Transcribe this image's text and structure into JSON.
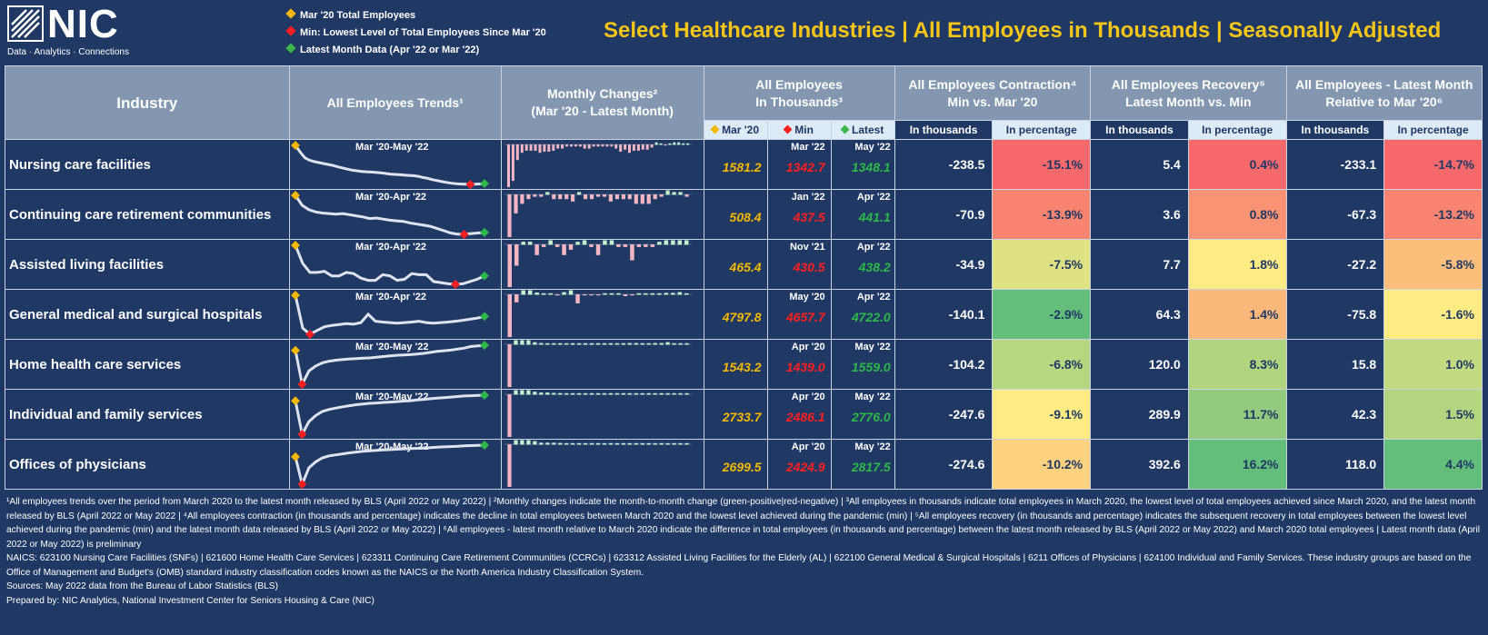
{
  "logo": {
    "name": "NIC",
    "tagline": "Data · Analytics · Connections"
  },
  "legend": [
    {
      "label": "Mar '20 Total Employees",
      "color": "#f5b800"
    },
    {
      "label": "Min: Lowest Level of Total Employees Since Mar '20",
      "color": "#ff1f1f"
    },
    {
      "label": "Latest Month Data (Apr '22 or Mar '22)",
      "color": "#3cb54a"
    }
  ],
  "title": "Select Healthcare Industries | All Employees in Thousands | Seasonally Adjusted",
  "headers": {
    "industry": "Industry",
    "trends": "All Employees Trends¹",
    "monthly_1": "Monthly Changes²",
    "monthly_2": "(Mar '20 - Latest Month)",
    "all_emp_1": "All Employees",
    "all_emp_2": "In Thousands³",
    "contraction_1": "All Employees Contraction⁴",
    "contraction_2": "Min vs. Mar '20",
    "recovery_1": "All Employees Recovery⁵",
    "recovery_2": "Latest Month vs. Min",
    "latest_1": "All Employees - Latest Month",
    "latest_2": "Relative to Mar '20⁶",
    "sub_mar": "Mar '20",
    "sub_min": "Min",
    "sub_latest": "Latest",
    "in_thousands": "In thousands",
    "in_percentage": "In percentage"
  },
  "colors": {
    "mar": "#f5b800",
    "min": "#ff1f1f",
    "latest": "#2db84a",
    "bg": "#1f3864",
    "header": "#8497b0"
  },
  "chart_data": {
    "type": "table",
    "rows": [
      {
        "industry": "Nursing care facilities",
        "period": "Mar '20-May '22",
        "mar20": "1581.2",
        "min_date": "Mar '22",
        "min": "1342.7",
        "latest_date": "May '22",
        "latest": "1348.1",
        "con_k": "-238.5",
        "con_p": "-15.1%",
        "rec_k": "5.4",
        "rec_p": "0.4%",
        "lat_k": "-233.1",
        "lat_p": "-14.7%",
        "con_col": "#f8696b",
        "rec_col": "#f8696b",
        "lat_col": "#f8696b",
        "trend": [
          1581,
          1540,
          1505,
          1490,
          1482,
          1476,
          1470,
          1464,
          1458,
          1450,
          1443,
          1436,
          1430,
          1426,
          1422,
          1420,
          1418,
          1416,
          1414,
          1410,
          1406,
          1404,
          1402,
          1400,
          1398,
          1396,
          1392,
          1385,
          1380,
          1372,
          1366,
          1360,
          1355,
          1350,
          1347,
          1345,
          1344,
          1343,
          1344,
          1346,
          1348
        ],
        "changes": [
          -41,
          -35,
          -15,
          -8,
          -6,
          -6,
          -6,
          -8,
          -7,
          -7,
          -6,
          -4,
          -4,
          -2,
          -2,
          -2,
          -2,
          -4,
          -4,
          -2,
          -2,
          -2,
          -2,
          -2,
          -4,
          -7,
          -5,
          -8,
          -6,
          -6,
          -5,
          -5,
          -3,
          2,
          1,
          -1,
          1,
          2,
          2,
          1,
          1
        ]
      },
      {
        "industry": "Continuing care retirement communities",
        "period": "Mar '20-Apr '22",
        "mar20": "508.4",
        "min_date": "Jan '22",
        "min": "437.5",
        "latest_date": "Apr '22",
        "latest": "441.1",
        "con_k": "-70.9",
        "con_p": "-13.9%",
        "rec_k": "3.6",
        "rec_p": "0.8%",
        "lat_k": "-67.3",
        "lat_p": "-13.2%",
        "con_col": "#f98470",
        "rec_col": "#fa9373",
        "lat_col": "#f98570",
        "trend": [
          508,
          490,
          482,
          478,
          476,
          475,
          474,
          475,
          473,
          471,
          469,
          466,
          467,
          465,
          463,
          462,
          461,
          458,
          456,
          454,
          452,
          448,
          444,
          440,
          438,
          437.5,
          439,
          440,
          441
        ],
        "changes": [
          -18,
          -8,
          -4,
          -2,
          -1,
          -1,
          1,
          -2,
          -2,
          -2,
          -3,
          1,
          -2,
          -2,
          -1,
          -1,
          -3,
          -2,
          -2,
          -2,
          -4,
          -4,
          -4,
          -2,
          -1,
          2,
          1,
          1,
          -1
        ]
      },
      {
        "industry": "Assisted living facilities",
        "period": "Mar '20-Apr '22",
        "mar20": "465.4",
        "min_date": "Nov '21",
        "min": "430.5",
        "latest_date": "Apr '22",
        "latest": "438.2",
        "con_k": "-34.9",
        "con_p": "-7.5%",
        "rec_k": "7.7",
        "rec_p": "1.8%",
        "lat_k": "-27.2",
        "lat_p": "-5.8%",
        "con_col": "#dfe283",
        "rec_col": "#ffeb84",
        "lat_col": "#fcbf7b",
        "trend": [
          465,
          449,
          441,
          441,
          442,
          438,
          438,
          441,
          440,
          436,
          434,
          434,
          439,
          438,
          434,
          435,
          440,
          439,
          439,
          433,
          432,
          431,
          430.5,
          431,
          433,
          435,
          438
        ],
        "changes": [
          -16,
          -8,
          1,
          1,
          -4,
          -1,
          3,
          -1,
          -4,
          -2,
          1,
          5,
          -1,
          -4,
          2,
          5,
          -1,
          -1,
          -6,
          -1,
          -1,
          -1,
          1,
          2,
          2,
          3,
          2
        ]
      },
      {
        "industry": "General medical and surgical hospitals",
        "period": "Mar '20-Apr '22",
        "mar20": "4797.8",
        "min_date": "May '20",
        "min": "4657.7",
        "latest_date": "Apr '22",
        "latest": "4722.0",
        "con_k": "-140.1",
        "con_p": "-2.9%",
        "rec_k": "64.3",
        "rec_p": "1.4%",
        "lat_k": "-75.8",
        "lat_p": "-1.6%",
        "con_col": "#63be7b",
        "rec_col": "#fcb77a",
        "lat_col": "#ffeb84",
        "trend": [
          4798,
          4680,
          4658,
          4672,
          4685,
          4690,
          4693,
          4696,
          4694,
          4700,
          4730,
          4705,
          4702,
          4700,
          4698,
          4700,
          4702,
          4705,
          4700,
          4698,
          4700,
          4702,
          4705,
          4708,
          4712,
          4716,
          4722
        ],
        "changes": [
          -118,
          -22,
          14,
          13,
          5,
          3,
          3,
          -2,
          6,
          30,
          -25,
          -3,
          -2,
          -2,
          2,
          2,
          3,
          -5,
          -2,
          2,
          2,
          3,
          3,
          4,
          4,
          6,
          3
        ]
      },
      {
        "industry": "Home health care services",
        "period": "Mar '20-May '22",
        "mar20": "1543.2",
        "min_date": "Apr '20",
        "min": "1439.0",
        "latest_date": "May '22",
        "latest": "1559.0",
        "con_k": "-104.2",
        "con_p": "-6.8%",
        "rec_k": "120.0",
        "rec_p": "8.3%",
        "lat_k": "15.8",
        "lat_p": "1.0%",
        "con_col": "#b6d67f",
        "rec_col": "#b1d57f",
        "lat_col": "#c3da80",
        "trend": [
          1543,
          1439,
          1480,
          1495,
          1505,
          1510,
          1513,
          1515,
          1517,
          1518,
          1519,
          1520,
          1522,
          1524,
          1526,
          1528,
          1529,
          1530,
          1532,
          1534,
          1537,
          1540,
          1542,
          1544,
          1547,
          1550,
          1555,
          1557,
          1559
        ],
        "changes": [
          -104,
          41,
          15,
          10,
          5,
          3,
          2,
          2,
          1,
          1,
          1,
          2,
          2,
          2,
          2,
          1,
          1,
          2,
          2,
          3,
          3,
          2,
          2,
          3,
          3,
          5,
          2,
          2,
          1
        ]
      },
      {
        "industry": "Individual and family services",
        "period": "Mar '20-May '22",
        "mar20": "2733.7",
        "min_date": "Apr '20",
        "min": "2486.1",
        "latest_date": "May '22",
        "latest": "2776.0",
        "con_k": "-247.6",
        "con_p": "-9.1%",
        "rec_k": "289.9",
        "rec_p": "11.7%",
        "lat_k": "42.3",
        "lat_p": "1.5%",
        "con_col": "#ffeb84",
        "rec_col": "#92cb7e",
        "lat_col": "#b4d57f",
        "trend": [
          2734,
          2486,
          2580,
          2625,
          2655,
          2670,
          2680,
          2690,
          2698,
          2705,
          2710,
          2715,
          2718,
          2722,
          2725,
          2728,
          2732,
          2735,
          2740,
          2745,
          2750,
          2754,
          2758,
          2762,
          2766,
          2770,
          2772,
          2774,
          2776
        ],
        "changes": [
          -248,
          94,
          45,
          30,
          15,
          10,
          10,
          8,
          7,
          5,
          5,
          3,
          4,
          3,
          3,
          4,
          3,
          5,
          5,
          5,
          4,
          4,
          4,
          4,
          4,
          2,
          2,
          2,
          1
        ]
      },
      {
        "industry": "Offices of physicians",
        "period": "Mar '20-May '22",
        "mar20": "2699.5",
        "min_date": "Apr '20",
        "min": "2424.9",
        "latest_date": "May '22",
        "latest": "2817.5",
        "con_k": "-274.6",
        "con_p": "-10.2%",
        "rec_k": "392.6",
        "rec_p": "16.2%",
        "lat_k": "118.0",
        "lat_p": "4.4%",
        "con_col": "#fed27f",
        "rec_col": "#63be7b",
        "lat_col": "#63be7b",
        "trend": [
          2700,
          2425,
          2590,
          2650,
          2690,
          2710,
          2720,
          2730,
          2740,
          2748,
          2755,
          2760,
          2765,
          2770,
          2773,
          2776,
          2780,
          2783,
          2786,
          2790,
          2793,
          2797,
          2800,
          2803,
          2806,
          2810,
          2813,
          2815,
          2817.5
        ],
        "changes": [
          -275,
          165,
          60,
          40,
          20,
          10,
          10,
          10,
          8,
          7,
          5,
          5,
          5,
          3,
          3,
          4,
          3,
          3,
          4,
          3,
          4,
          3,
          3,
          3,
          4,
          3,
          2,
          2,
          2
        ]
      }
    ]
  },
  "footnotes": [
    "¹All employees trends over the period from March 2020 to the latest month released by BLS (April 2022 or May 2022) | ²Monthly changes indicate the month-to-month change (green-positive|red-negative) | ³All employees in thousands indicate total employees in March 2020, the lowest level of total employees achieved since March 2020, and the latest month released by BLS (April 2022 or May 2022 | ⁴All employees contraction (in thousands and percentage) indicates the decline in total employees between March 2020 and the lowest level achieved during the pandemic (min) | ⁵All employees recovery (in thousands and percentage) indicates the subsequent recovery in total employees between the lowest level achieved during the pandemic (min) and the latest month data released by BLS (April 2022 or May 2022) | ⁶All employees - latest month relative to March 2020 indicate the difference in total employees (in thousands and percentage) between the latest month released by BLS (April 2022 or May 2022) and March 2020 total employees | Latest month data (April 2022 or May 2022) is preliminary",
    "NAICS: 623100 Nursing Care Facilities (SNFs) | 621600 Home Health Care Services | 623311 Continuing Care Retirement Communities (CCRCs) | 623312 Assisted Living Facilities for the Elderly (AL) | 622100 General Medical & Surgical Hospitals | 6211 Offices of Physicians | 624100 Individual and Family Services. These industry groups are based on the Office of Management and Budget's (OMB) standard industry classification codes known as the NAICS or the North America Industry Classification System.",
    "Sources: May 2022 data from the Bureau of Labor Statistics (BLS)",
    "Prepared by: NIC Analytics, National Investment Center for Seniors Housing & Care (NIC)"
  ]
}
